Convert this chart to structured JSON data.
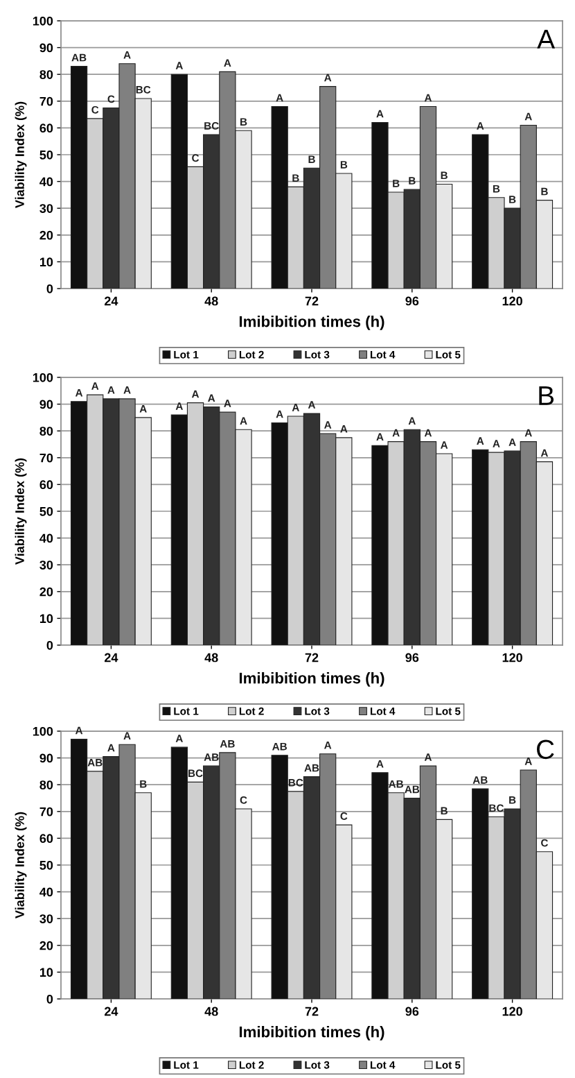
{
  "chart_data": [
    {
      "type": "bar",
      "categories": [
        "24",
        "48",
        "72",
        "96",
        "120"
      ],
      "xlabel": "Imibibition times (h)",
      "ylabel": "Viability Index (%)",
      "ylim": [
        0,
        100
      ],
      "yticks": [
        0,
        10,
        20,
        30,
        40,
        50,
        60,
        70,
        80,
        90,
        100
      ],
      "grid": "y",
      "legend": "bottom",
      "annotations": [
        "A"
      ],
      "series": [
        {
          "name": "Lot 1",
          "color": "#111111",
          "values": [
            83,
            80,
            68,
            62,
            57.5
          ],
          "value_labels": [
            "AB",
            "A",
            "A",
            "A",
            "A"
          ]
        },
        {
          "name": "Lot 2",
          "color": "#cfcfcf",
          "values": [
            63.5,
            45.5,
            38,
            36,
            34
          ],
          "value_labels": [
            "C",
            "C",
            "B",
            "B",
            "B"
          ]
        },
        {
          "name": "Lot 3",
          "color": "#333333",
          "values": [
            67.5,
            57.5,
            45,
            37,
            30
          ],
          "value_labels": [
            "C",
            "BC",
            "B",
            "B",
            "B"
          ]
        },
        {
          "name": "Lot 4",
          "color": "#808080",
          "values": [
            84,
            81,
            75.5,
            68,
            61
          ],
          "value_labels": [
            "A",
            "A",
            "A",
            "A",
            "A"
          ]
        },
        {
          "name": "Lot 5",
          "color": "#e6e6e6",
          "values": [
            71,
            59,
            43,
            39,
            33
          ],
          "value_labels": [
            "BC",
            "B",
            "B",
            "B",
            "B"
          ]
        }
      ]
    },
    {
      "type": "bar",
      "categories": [
        "24",
        "48",
        "72",
        "96",
        "120"
      ],
      "xlabel": "Imibibition times (h)",
      "ylabel": "Viability Index (%)",
      "ylim": [
        0,
        100
      ],
      "yticks": [
        0,
        10,
        20,
        30,
        40,
        50,
        60,
        70,
        80,
        90,
        100
      ],
      "grid": "y",
      "legend": "bottom",
      "annotations": [
        "B"
      ],
      "series": [
        {
          "name": "Lot 1",
          "color": "#111111",
          "values": [
            91,
            86,
            83,
            74.5,
            73
          ],
          "value_labels": [
            "A",
            "A",
            "A",
            "A",
            "A"
          ]
        },
        {
          "name": "Lot 2",
          "color": "#cfcfcf",
          "values": [
            93.5,
            90.5,
            85.5,
            76,
            72
          ],
          "value_labels": [
            "A",
            "A",
            "A",
            "A",
            "A"
          ]
        },
        {
          "name": "Lot 3",
          "color": "#333333",
          "values": [
            92,
            89,
            86.5,
            80.5,
            72.5
          ],
          "value_labels": [
            "A",
            "A",
            "A",
            "A",
            "A"
          ]
        },
        {
          "name": "Lot 4",
          "color": "#808080",
          "values": [
            92,
            87,
            79,
            76,
            76
          ],
          "value_labels": [
            "A",
            "A",
            "A",
            "A",
            "A"
          ]
        },
        {
          "name": "Lot 5",
          "color": "#e6e6e6",
          "values": [
            85,
            80.5,
            77.5,
            71.5,
            68.5
          ],
          "value_labels": [
            "A",
            "A",
            "A",
            "A",
            "A"
          ]
        }
      ]
    },
    {
      "type": "bar",
      "categories": [
        "24",
        "48",
        "72",
        "96",
        "120"
      ],
      "xlabel": "Imibibition times (h)",
      "ylabel": "Viability Index (%)",
      "ylim": [
        0,
        100
      ],
      "yticks": [
        0,
        10,
        20,
        30,
        40,
        50,
        60,
        70,
        80,
        90,
        100
      ],
      "grid": "y",
      "legend": "bottom",
      "annotations": [
        "C"
      ],
      "series": [
        {
          "name": "Lot 1",
          "color": "#111111",
          "values": [
            97,
            94,
            91,
            84.5,
            78.5
          ],
          "value_labels": [
            "A",
            "A",
            "AB",
            "A",
            "AB"
          ]
        },
        {
          "name": "Lot 2",
          "color": "#cfcfcf",
          "values": [
            85,
            81,
            77.5,
            77,
            68
          ],
          "value_labels": [
            "AB",
            "BC",
            "BC",
            "AB",
            "BC"
          ]
        },
        {
          "name": "Lot 3",
          "color": "#333333",
          "values": [
            90.5,
            87,
            83,
            75,
            71
          ],
          "value_labels": [
            "A",
            "AB",
            "AB",
            "AB",
            "B"
          ]
        },
        {
          "name": "Lot 4",
          "color": "#808080",
          "values": [
            95,
            92,
            91.5,
            87,
            85.5
          ],
          "value_labels": [
            "A",
            "AB",
            "A",
            "A",
            "A"
          ]
        },
        {
          "name": "Lot 5",
          "color": "#e6e6e6",
          "values": [
            77,
            71,
            65,
            67,
            55
          ],
          "value_labels": [
            "B",
            "C",
            "C",
            "B",
            "C"
          ]
        }
      ]
    }
  ]
}
